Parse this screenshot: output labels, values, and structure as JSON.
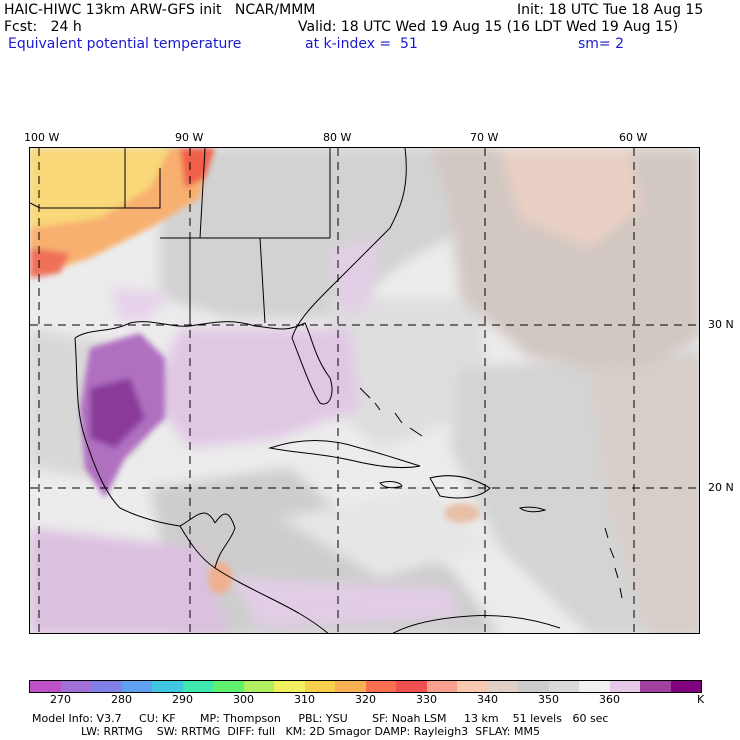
{
  "header": {
    "line1_left": "HAIC-HIWC 13km ARW-GFS init   NCAR/MMM",
    "line1_right": "Init: 18 UTC Tue 18 Aug 15",
    "line2_left": "Fcst:   24 h",
    "line2_right": "Valid: 18 UTC Wed 19 Aug 15 (16 LDT Wed 19 Aug 15)",
    "line3_left": "Equivalent potential temperature",
    "line3_mid": "at k-index =  51",
    "line3_right": "sm= 2"
  },
  "axes": {
    "lon_labels": [
      "100 W",
      "90 W",
      "80 W",
      "70 W",
      "60 W"
    ],
    "lat_labels": [
      "30 N",
      "20 N"
    ]
  },
  "colorbar": {
    "colors": [
      "#c050c8",
      "#a070d8",
      "#8080e8",
      "#60a0f0",
      "#40c8e0",
      "#40e8b0",
      "#60f070",
      "#b0f060",
      "#f0f060",
      "#f8d050",
      "#f8b050",
      "#f87050",
      "#f05050",
      "#f8a090",
      "#f8c8b0",
      "#e0d0c8",
      "#cccccc",
      "#d8d8d8",
      "#f0f0f0",
      "#e8c8e8",
      "#a040a0",
      "#800080"
    ],
    "tick_labels": [
      "270",
      "280",
      "290",
      "300",
      "310",
      "320",
      "330",
      "340",
      "350",
      "360"
    ],
    "unit": "K"
  },
  "footer": {
    "line1": "Model Info: V3.7     CU: KF       MP: Thompson     PBL: YSU       SF: Noah LSM     13 km    51 levels   60 sec",
    "line2": "              LW: RRTMG    SW: RRTMG  DIFF: full   KM: 2D Smagor DAMP: Rayleigh3  SFLAY: MM5"
  }
}
